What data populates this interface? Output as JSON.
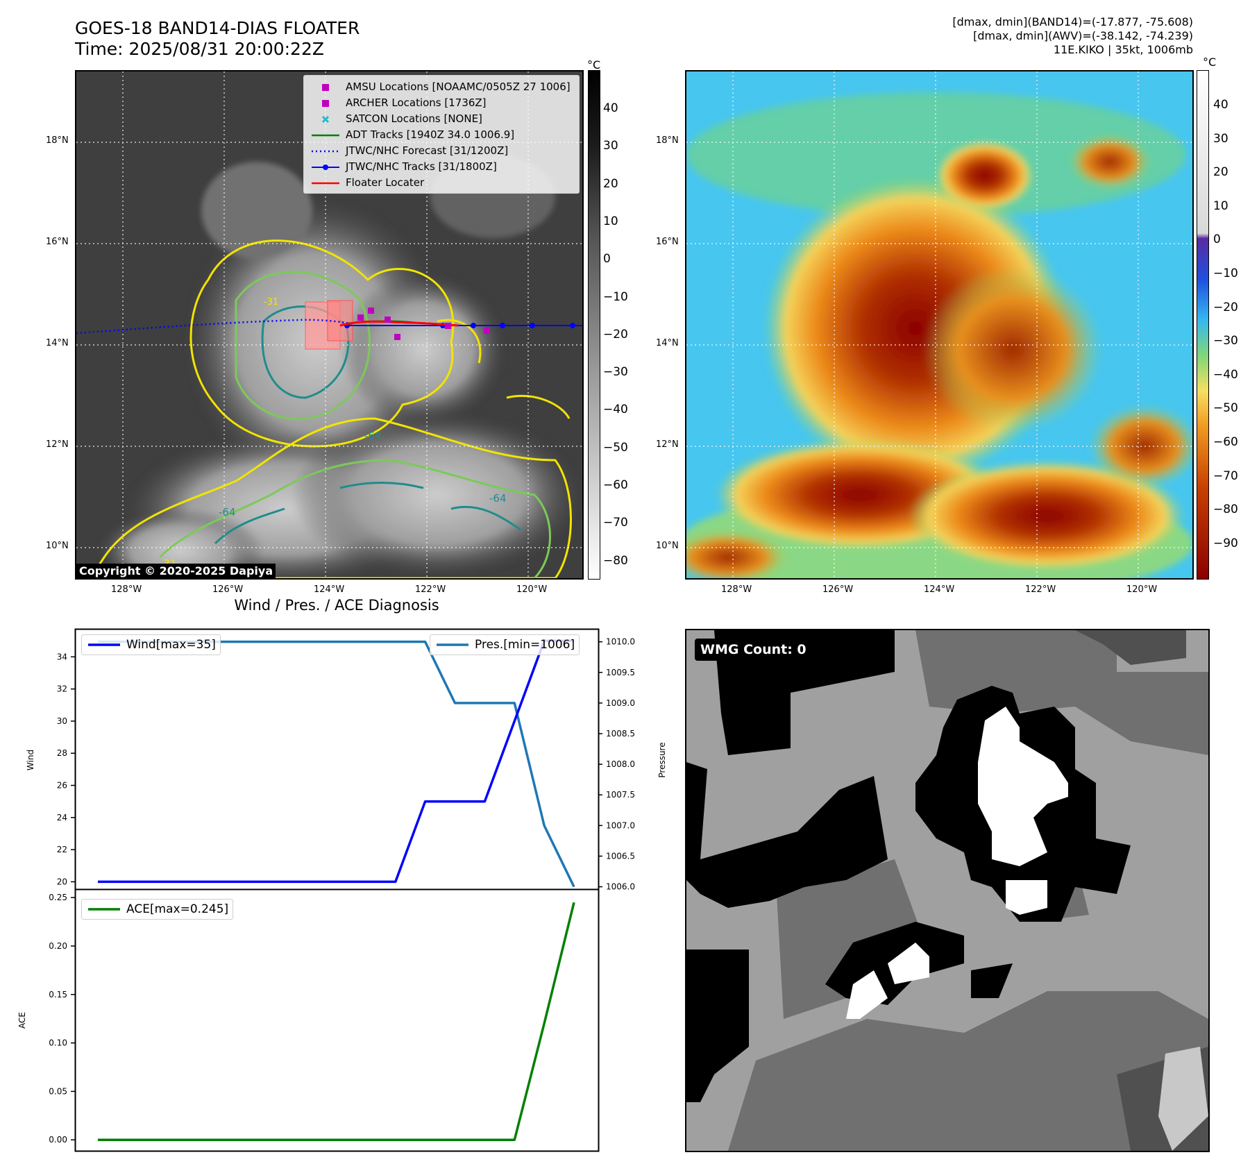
{
  "header": {
    "title_line1": "GOES-18 BAND14-DIAS FLOATER",
    "title_line2": "Time: 2025/08/31 20:00:22Z",
    "info_line1": "[dmax, dmin](BAND14)=(-17.877, -75.608)",
    "info_line2": "[dmax, dmin](AWV)=(-38.142, -74.239)",
    "info_line3": "11E.KIKO | 35kt, 1006mb"
  },
  "maps": {
    "lat_ticks": [
      "18°N",
      "16°N",
      "14°N",
      "12°N",
      "10°N"
    ],
    "lon_ticks": [
      "128°W",
      "126°W",
      "124°W",
      "122°W",
      "120°W"
    ],
    "copyright": "Copyright © 2020-2025 Dapiya",
    "contour_labels": [
      "-64",
      "-64",
      "-64",
      "-31",
      "-31"
    ]
  },
  "legend": {
    "amsu": "AMSU Locations [NOAAMC/0505Z 27 1006]",
    "archer": "ARCHER Locations [1736Z]",
    "satcon": "SATCON Locations [NONE]",
    "adt": "ADT Tracks [1940Z 34.0 1006.9]",
    "forecast": "JTWC/NHC Forecast [31/1200Z]",
    "tracks": "JTWC/NHC Tracks [31/1800Z]",
    "floater": "Floater Locater"
  },
  "colorbar_gray": {
    "unit": "°C",
    "ticks": [
      "40",
      "30",
      "20",
      "10",
      "0",
      "−10",
      "−20",
      "−30",
      "−40",
      "−50",
      "−60",
      "−70",
      "−80"
    ]
  },
  "colorbar_color": {
    "unit": "°C",
    "ticks": [
      "40",
      "30",
      "20",
      "10",
      "0",
      "−10",
      "−20",
      "−30",
      "−40",
      "−50",
      "−60",
      "−70",
      "−80",
      "−90"
    ]
  },
  "wmg": {
    "label": "WMG Count: 0"
  },
  "colors": {
    "amsu": "#c000c0",
    "satcon": "#17becf",
    "adt": "#008000",
    "forecast": "#0000ff",
    "tracks": "#0000ff",
    "floater": "#ff0000",
    "wind": "#0000ff",
    "pressure": "#1f77b4",
    "ace": "#008000"
  },
  "chart_data": [
    {
      "type": "line",
      "title": "Wind / Pres. / ACE Diagnosis",
      "xlabel": "",
      "ylabel": "Wind",
      "ylabel_right": "Pressure",
      "x": [
        0,
        1,
        2,
        3,
        4,
        5,
        6,
        7,
        8,
        9,
        10,
        11,
        12,
        13,
        14,
        15,
        16
      ],
      "ylim": [
        19.5,
        35.7
      ],
      "ylim_right": [
        1005.95,
        1010.2
      ],
      "yticks": [
        "20",
        "22",
        "24",
        "26",
        "28",
        "30",
        "32",
        "34"
      ],
      "yticks_right": [
        "1006.0",
        "1006.5",
        "1007.0",
        "1007.5",
        "1008.0",
        "1008.5",
        "1009.0",
        "1009.5",
        "1010.0"
      ],
      "series": [
        {
          "name": "Wind[max=35]",
          "axis": "left",
          "values": [
            20,
            20,
            20,
            20,
            20,
            20,
            20,
            20,
            20,
            20,
            20,
            25,
            25,
            25,
            30,
            35,
            35
          ]
        },
        {
          "name": "Pres.[min=1006]",
          "axis": "right",
          "values": [
            1010,
            1010,
            1010,
            1010,
            1010,
            1010,
            1010,
            1010,
            1010,
            1010,
            1010,
            1010,
            1009,
            1009,
            1009,
            1007,
            1006
          ]
        }
      ]
    },
    {
      "type": "line",
      "xlabel": "",
      "ylabel": "ACE",
      "x": [
        0,
        1,
        2,
        3,
        4,
        5,
        6,
        7,
        8,
        9,
        10,
        11,
        12,
        13,
        14,
        15,
        16
      ],
      "ylim": [
        -0.012,
        0.258
      ],
      "yticks": [
        "0.00",
        "0.05",
        "0.10",
        "0.15",
        "0.20",
        "0.25"
      ],
      "series": [
        {
          "name": "ACE[max=0.245]",
          "values": [
            0,
            0,
            0,
            0,
            0,
            0,
            0,
            0,
            0,
            0,
            0,
            0,
            0,
            0,
            0,
            0.12,
            0.245
          ]
        }
      ]
    }
  ]
}
